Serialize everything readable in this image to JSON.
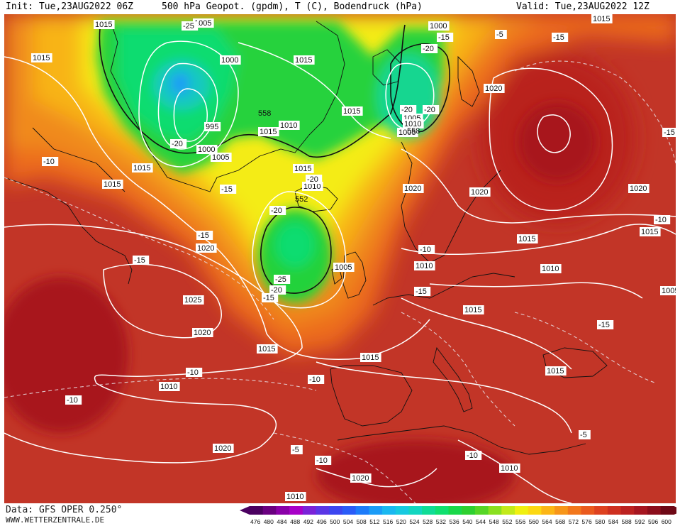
{
  "header": {
    "init": "Init: Tue,23AUG2022 06Z",
    "title": "500 hPa Geopot. (gpdm), T (C), Bodendruck (hPa)",
    "valid": "Valid: Tue,23AUG2022 12Z"
  },
  "footer": {
    "data_source": "Data: GFS OPER 0.250°",
    "website": "WWW.WETTERZENTRALE.DE"
  },
  "map": {
    "region": "North Atlantic and Europe",
    "fields": [
      "500 hPa geopotential (gpdm, color filled)",
      "500 hPa temperature (C, dashed)",
      "surface pressure (hPa, white isobars)"
    ],
    "pressure_labels": [
      {
        "text": "1015",
        "near": "top-left Atlantic"
      },
      {
        "text": "1015",
        "near": "west of Greenland"
      },
      {
        "text": "1005",
        "near": "Greenland north"
      },
      {
        "text": "1000",
        "near": "Greenland center"
      },
      {
        "text": "995",
        "near": "Greenland south"
      },
      {
        "text": "1000",
        "near": "Greenland south coast"
      },
      {
        "text": "1005",
        "near": "Greenland southeast"
      },
      {
        "text": "1010",
        "near": "Greenland east"
      },
      {
        "text": "1015",
        "near": "Greenland east"
      },
      {
        "text": "1015",
        "near": "Greenland Sea"
      },
      {
        "text": "1015",
        "near": "Arctic north"
      },
      {
        "text": "1000",
        "near": "Svalbard"
      },
      {
        "text": "1005",
        "near": "Svalbard"
      },
      {
        "text": "1005",
        "near": "Norwegian Sea"
      },
      {
        "text": "1010",
        "near": "Norwegian Sea"
      },
      {
        "text": "1020",
        "near": "Barents Sea"
      },
      {
        "text": "1015",
        "near": "Labrador Sea"
      },
      {
        "text": "1015",
        "near": "Davis Strait"
      },
      {
        "text": "1015",
        "near": "Iceland south"
      },
      {
        "text": "1010",
        "near": "south of Iceland"
      },
      {
        "text": "1020",
        "near": "Scandinavia"
      },
      {
        "text": "1020",
        "near": "Finland"
      },
      {
        "text": "1020",
        "near": "Russia"
      },
      {
        "text": "1015",
        "near": "Russia east"
      },
      {
        "text": "1020",
        "near": "Newfoundland east"
      },
      {
        "text": "1005",
        "near": "low west of Ireland"
      },
      {
        "text": "1010",
        "near": "Scotland"
      },
      {
        "text": "1015",
        "near": "Germany"
      },
      {
        "text": "1015",
        "near": "Ukraine"
      },
      {
        "text": "1010",
        "near": "Ukraine"
      },
      {
        "text": "1015",
        "near": "Alps"
      },
      {
        "text": "1005",
        "near": "Caspian"
      },
      {
        "text": "1025",
        "near": "Azores high"
      },
      {
        "text": "1020",
        "near": "central Atlantic"
      },
      {
        "text": "1015",
        "near": "Bay of Biscay west"
      },
      {
        "text": "1015",
        "near": "Iberia north"
      },
      {
        "text": "1010",
        "near": "Black Sea"
      },
      {
        "text": "1020",
        "near": "Atlantic southwest"
      },
      {
        "text": "1020",
        "near": "Canary Islands"
      },
      {
        "text": "1010",
        "near": "Algeria"
      },
      {
        "text": "1010",
        "near": "Libya"
      },
      {
        "text": "1015",
        "near": "Sahara"
      }
    ],
    "geopotential_labels": [
      {
        "text": "558",
        "near": "Greenland east"
      },
      {
        "text": "558",
        "near": "Norway coast"
      },
      {
        "text": "552",
        "near": "low west of Ireland"
      }
    ],
    "temperature_labels": [
      {
        "text": "-25",
        "near": "Greenland north"
      },
      {
        "text": "-20",
        "near": "Greenland south"
      },
      {
        "text": "-15",
        "near": "Svalbard"
      },
      {
        "text": "-20",
        "near": "Svalbard"
      },
      {
        "text": "-15",
        "near": "Novaya Zemlya"
      },
      {
        "text": "-15",
        "near": "Russia northeast"
      },
      {
        "text": "-20",
        "near": "Norway coast"
      },
      {
        "text": "-20",
        "near": "Norwegian Sea"
      },
      {
        "text": "-10",
        "near": "Labrador"
      },
      {
        "text": "-15",
        "near": "Iceland south"
      },
      {
        "text": "-15",
        "near": "Greenland southeast"
      },
      {
        "text": "-20",
        "near": "south of Iceland"
      },
      {
        "text": "-20",
        "near": "west of Ireland"
      },
      {
        "text": "-15",
        "near": "Atlantic"
      },
      {
        "text": "-25",
        "near": "low center"
      },
      {
        "text": "-20",
        "near": "low south"
      },
      {
        "text": "-15",
        "near": "low southwest"
      },
      {
        "text": "-10",
        "near": "Atlantic west"
      },
      {
        "text": "-15",
        "near": "Denmark"
      },
      {
        "text": "-10",
        "near": "France"
      },
      {
        "text": "-15",
        "near": "Caspian area"
      },
      {
        "text": "-10",
        "near": "Caucasus"
      },
      {
        "text": "-10",
        "near": "Atlantic"
      },
      {
        "text": "-10",
        "near": "Iberia west"
      },
      {
        "text": "-5",
        "near": "Atlantic southwest"
      },
      {
        "text": "-10",
        "near": "Morocco"
      },
      {
        "text": "-10",
        "near": "Algeria"
      },
      {
        "text": "-5",
        "near": "Libya"
      },
      {
        "text": "-5",
        "near": "Middle East"
      }
    ]
  },
  "colorbar": {
    "unit": "gpdm",
    "ticks": [
      "476",
      "480",
      "484",
      "488",
      "492",
      "496",
      "500",
      "504",
      "508",
      "512",
      "516",
      "520",
      "524",
      "528",
      "532",
      "536",
      "540",
      "544",
      "548",
      "552",
      "556",
      "560",
      "564",
      "568",
      "572",
      "576",
      "580",
      "584",
      "588",
      "592",
      "596",
      "600"
    ],
    "colors": [
      "#4b0060",
      "#6a0080",
      "#8a00a8",
      "#a800c8",
      "#7a22d8",
      "#5a36e6",
      "#3c46f0",
      "#2a5cf8",
      "#1d7cfa",
      "#1b9cf7",
      "#1ab8f0",
      "#17c9e0",
      "#13d6c0",
      "#10dc96",
      "#10e070",
      "#1ad84a",
      "#2ed030",
      "#56d626",
      "#8ae020",
      "#c2ea1a",
      "#f0f010",
      "#fcd812",
      "#fcb616",
      "#f7961a",
      "#f2771c",
      "#ea5a1e",
      "#de4220",
      "#ce3020",
      "#bc2220",
      "#a61620",
      "#8c0e1c",
      "#6e0816"
    ]
  },
  "colors": {
    "background_ocean": "#c03326",
    "high_dark": "#a8141f",
    "contour_white": "#ffffff",
    "coast_black": "#111111"
  }
}
